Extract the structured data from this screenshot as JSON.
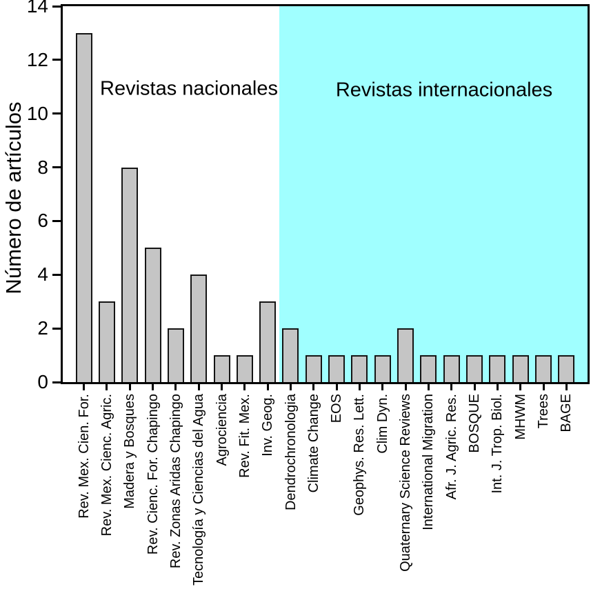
{
  "figure": {
    "y_axis_title": "Número de artículos",
    "region_labels": {
      "national": "Revistas nacionales",
      "international": "Revistas internacionales"
    },
    "colors": {
      "international_background": "#A0FFFF",
      "bar_fill": "#C5C5C5",
      "bar_border": "#141414",
      "axis": "#000000"
    }
  },
  "chart_data": {
    "type": "bar",
    "title": "",
    "xlabel": "",
    "ylabel": "Número de artículos",
    "ylim": [
      0,
      14
    ],
    "yticks": [
      0,
      2,
      4,
      6,
      8,
      10,
      12,
      14
    ],
    "grid": false,
    "legend": "none",
    "annotations": [
      "Revistas nacionales",
      "Revistas internacionales"
    ],
    "group_split": {
      "national_count": 9,
      "international_count": 13
    },
    "categories": [
      "Rev. Mex. Cien. For.",
      "Rev. Mex. Cienc. Agric.",
      "Madera y Bosques",
      "Rev. Cienc. For. Chapingo",
      "Rev. Zonas Aridas Chapingo",
      "Tecnología y Ciencias del Agua",
      "Agrociencia",
      "Rev. Fit. Mex.",
      "Inv. Geog.",
      "Dendrochronologia",
      "Climate Change",
      "EOS",
      "Geophys. Res. Lett.",
      "Clim Dyn.",
      "Quaternary Science Reviews",
      "International Migration",
      "Afr. J. Agric. Res.",
      "BOSQUE",
      "Int. J. Trop. Biol.",
      "MHWM",
      "Trees",
      "BAGE"
    ],
    "values": [
      13,
      3,
      8,
      5,
      2,
      4,
      1,
      1,
      3,
      2,
      1,
      1,
      1,
      1,
      2,
      1,
      1,
      1,
      1,
      1,
      1,
      1
    ]
  }
}
